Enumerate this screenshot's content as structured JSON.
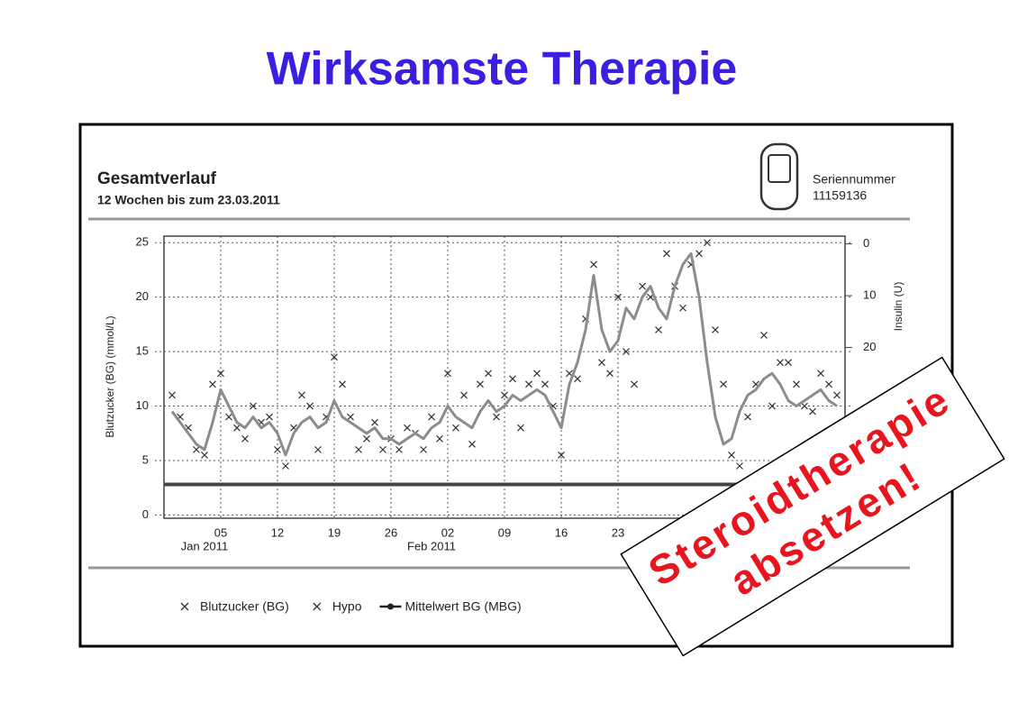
{
  "slide_title": "Wirksamste Therapie",
  "stamp": [
    "Steroidtherapie",
    "absetzen!"
  ],
  "chart_data": {
    "type": "line",
    "title": "Gesamtverlauf",
    "subtitle": "12 Wochen bis zum 23.03.2011",
    "device_label": "Seriennummer",
    "device_serial": "11159136",
    "y_label": "Blutzucker (BG) (mmol/L)",
    "y2_label": "Insulin (U)",
    "x": [
      "2010-12-30",
      "2010-12-31",
      "2011-01-01",
      "2011-01-02",
      "2011-01-03",
      "2011-01-04",
      "2011-01-05",
      "2011-01-06",
      "2011-01-07",
      "2011-01-08",
      "2011-01-09",
      "2011-01-10",
      "2011-01-11",
      "2011-01-12",
      "2011-01-13",
      "2011-01-14",
      "2011-01-15",
      "2011-01-16",
      "2011-01-17",
      "2011-01-18",
      "2011-01-19",
      "2011-01-20",
      "2011-01-21",
      "2011-01-22",
      "2011-01-23",
      "2011-01-24",
      "2011-01-25",
      "2011-01-26",
      "2011-01-27",
      "2011-01-28",
      "2011-01-29",
      "2011-01-30",
      "2011-01-31",
      "2011-02-01",
      "2011-02-02",
      "2011-02-03",
      "2011-02-04",
      "2011-02-05",
      "2011-02-06",
      "2011-02-07",
      "2011-02-08",
      "2011-02-09",
      "2011-02-10",
      "2011-02-11",
      "2011-02-12",
      "2011-02-13",
      "2011-02-14",
      "2011-02-15",
      "2011-02-16",
      "2011-02-17",
      "2011-02-18",
      "2011-02-19",
      "2011-02-20",
      "2011-02-21",
      "2011-02-22",
      "2011-02-23",
      "2011-02-24",
      "2011-02-25",
      "2011-02-26",
      "2011-02-27",
      "2011-02-28",
      "2011-03-01",
      "2011-03-02",
      "2011-03-03",
      "2011-03-04",
      "2011-03-05",
      "2011-03-06",
      "2011-03-07",
      "2011-03-08",
      "2011-03-09",
      "2011-03-10",
      "2011-03-11",
      "2011-03-12",
      "2011-03-13",
      "2011-03-14",
      "2011-03-15",
      "2011-03-16",
      "2011-03-17",
      "2011-03-18",
      "2011-03-19",
      "2011-03-20",
      "2011-03-21",
      "2011-03-22"
    ],
    "series": [
      {
        "name": "Blutzucker (BG)",
        "kind": "scatter",
        "color": "#333333",
        "values": [
          11,
          9,
          8,
          6,
          5.5,
          12,
          13,
          9,
          8,
          7,
          10,
          8.5,
          9,
          6,
          4.5,
          8,
          11,
          10,
          6,
          9,
          14.5,
          12,
          9,
          6,
          7,
          8.5,
          6,
          7,
          6,
          8,
          7.5,
          6,
          9,
          7,
          13,
          8,
          11,
          6.5,
          12,
          13,
          9,
          11,
          12.5,
          8,
          12,
          13,
          12,
          10,
          5.5,
          13,
          12.5,
          18,
          23,
          14,
          13,
          20,
          15,
          12,
          21,
          20,
          17,
          24,
          21,
          19,
          23,
          24,
          25,
          17,
          12,
          5.5,
          4.5,
          9,
          12,
          16.5,
          10,
          14,
          14,
          12,
          10,
          9.5,
          13,
          12,
          11
        ]
      },
      {
        "name": "Mittelwert BG (MBG)",
        "kind": "line",
        "color": "#8c8c8c",
        "values": [
          9.5,
          8.5,
          7.5,
          6.5,
          6,
          8.5,
          11.5,
          10,
          8.5,
          8,
          9,
          8,
          8.5,
          7.5,
          5.5,
          7.5,
          8.5,
          9,
          8,
          8.5,
          10.5,
          9,
          8.5,
          8,
          7.5,
          8,
          7,
          7,
          6.5,
          7,
          7.5,
          7,
          8,
          8.5,
          10,
          9,
          8.5,
          8,
          9.5,
          10.5,
          9.5,
          10,
          11,
          10.5,
          11,
          11.5,
          11,
          9.5,
          8,
          12,
          14,
          17,
          22,
          17,
          15,
          16,
          19,
          18,
          20,
          21,
          19,
          18,
          21,
          23,
          24,
          20,
          14,
          9,
          6.5,
          7,
          9.5,
          11,
          11.5,
          12.5,
          13,
          12,
          10.5,
          10,
          10.5,
          11,
          11.5,
          10.5,
          10
        ]
      }
    ],
    "extra_legend": [
      "Hypo"
    ],
    "lower_line": 2.8,
    "xlim": [
      "2010-12-29",
      "2011-03-23"
    ],
    "xticks": [
      {
        "value": "2011-01-05",
        "label": "05"
      },
      12,
      19,
      26,
      {
        "value": "2011-02-02",
        "label": "02"
      },
      {
        "value": "2011-02-09",
        "label": "09"
      },
      16,
      23
    ],
    "xtick_dates": [
      "2011-01-05",
      "2011-01-12",
      "2011-01-19",
      "2011-01-26",
      "2011-02-02",
      "2011-02-09",
      "2011-02-16",
      "2011-02-23"
    ],
    "month_labels": [
      {
        "value": "2011-01-05",
        "label": "Jan 2011"
      },
      {
        "value": "2011-02-02",
        "label": "Feb 2011"
      }
    ],
    "ylim": [
      -0.3,
      25.6
    ],
    "yticks": [
      0,
      5,
      10,
      15,
      20,
      25
    ],
    "y2lim": [
      -1.5,
      53
    ],
    "y2ticks": [
      0,
      10,
      20
    ],
    "y2_inverted": true,
    "grid": true
  }
}
